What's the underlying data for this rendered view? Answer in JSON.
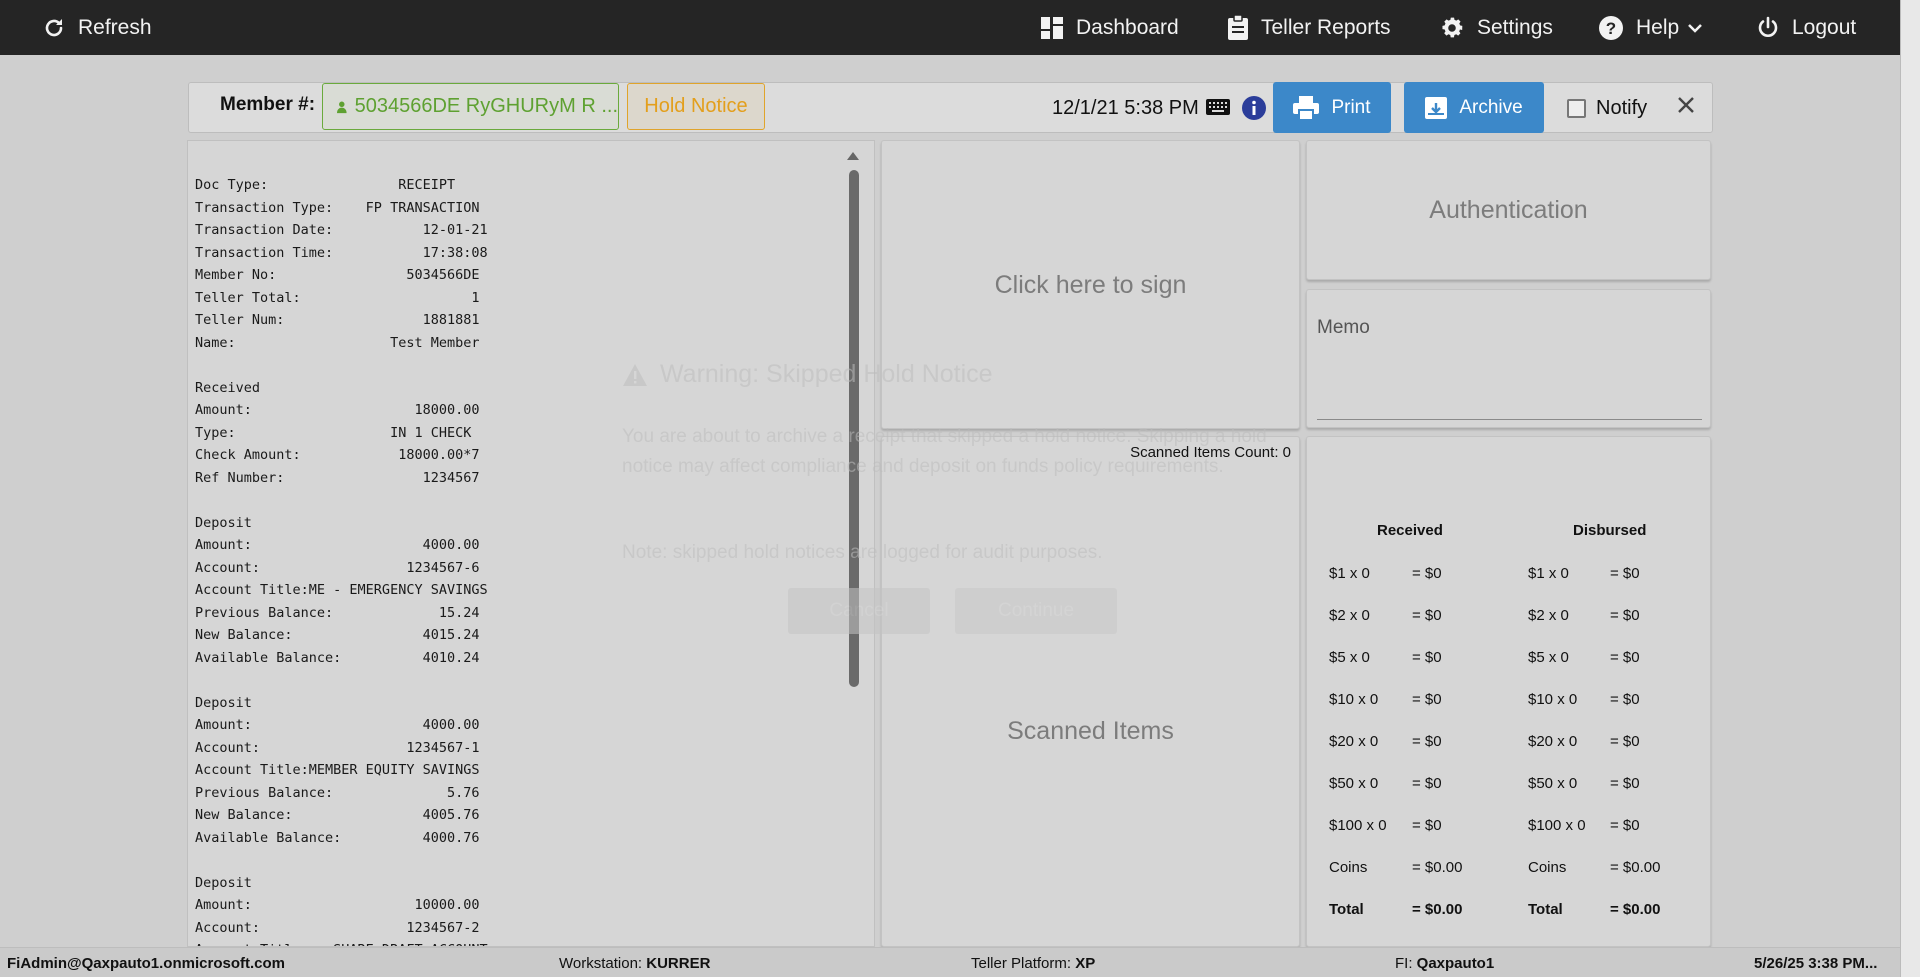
{
  "topbar": {
    "refresh": "Refresh",
    "dashboard": "Dashboard",
    "teller_reports": "Teller Reports",
    "settings": "Settings",
    "help": "Help",
    "logout": "Logout"
  },
  "member_bar": {
    "label": "Member #:",
    "member_value": "5034566DE RyGHURyM R ...",
    "hold_notice": "Hold Notice",
    "datetime": "12/1/21 5:38 PM",
    "print": "Print",
    "archive": "Archive",
    "notify": "Notify"
  },
  "receipt": {
    "lines": [
      "Doc Type:                RECEIPT",
      "Transaction Type:    FP TRANSACTION",
      "Transaction Date:           12-01-21",
      "Transaction Time:           17:38:08",
      "Member No:                5034566DE",
      "Teller Total:                     1",
      "Teller Num:                 1881881",
      "Name:                   Test Member",
      "",
      "Received",
      "Amount:                    18000.00",
      "Type:                   IN 1 CHECK",
      "Check Amount:            18000.00*7",
      "Ref Number:                 1234567",
      "",
      "Deposit",
      "Amount:                     4000.00",
      "Account:                  1234567-6",
      "Account Title:ME - EMERGENCY SAVINGS",
      "Previous Balance:             15.24",
      "New Balance:                4015.24",
      "Available Balance:          4010.24",
      "",
      "Deposit",
      "Amount:                     4000.00",
      "Account:                  1234567-1",
      "Account Title:MEMBER EQUITY SAVINGS",
      "Previous Balance:              5.76",
      "New Balance:                4005.76",
      "Available Balance:          4000.76",
      "",
      "Deposit",
      "Amount:                    10000.00",
      "Account:                  1234567-2",
      "Account Title:   SHARE DRAFT ACCOUNT"
    ]
  },
  "sign": {
    "text": "Click here to sign"
  },
  "scan": {
    "count_label": "Scanned Items Count: 0",
    "title": "Scanned Items"
  },
  "auth": {
    "text": "Authentication"
  },
  "memo": {
    "label": "Memo"
  },
  "cash": {
    "received_header": "Received",
    "disbursed_header": "Disbursed",
    "rows": [
      {
        "label": "$1 x 0",
        "value": "= $0"
      },
      {
        "label": "$2 x 0",
        "value": "= $0"
      },
      {
        "label": "$5 x 0",
        "value": "= $0"
      },
      {
        "label": "$10 x 0",
        "value": "= $0"
      },
      {
        "label": "$20 x 0",
        "value": "= $0"
      },
      {
        "label": "$50 x 0",
        "value": "= $0"
      },
      {
        "label": "$100 x 0",
        "value": "= $0"
      },
      {
        "label": "Coins",
        "value": "= $0.00"
      },
      {
        "label": "Total",
        "value": "= $0.00"
      }
    ]
  },
  "ghost_modal": {
    "title": "Warning: Skipped Hold Notice",
    "body": "You are about to archive a receipt that skipped a hold notice. Skipping a hold notice may affect compliance and deposit on funds policy requirements.",
    "note": "Note: skipped hold notices are logged for audit purposes.",
    "button1": "Cancel",
    "button2": "Continue"
  },
  "footer": {
    "user": "FiAdmin@Qaxpauto1.onmicrosoft.com",
    "workstation_label": "Workstation:",
    "workstation": "KURRER",
    "platform_label": "Teller Platform:",
    "platform": "XP",
    "fi_label": "FI:",
    "fi": "Qaxpauto1",
    "datetime": "5/26/25 3:38 PM..."
  }
}
